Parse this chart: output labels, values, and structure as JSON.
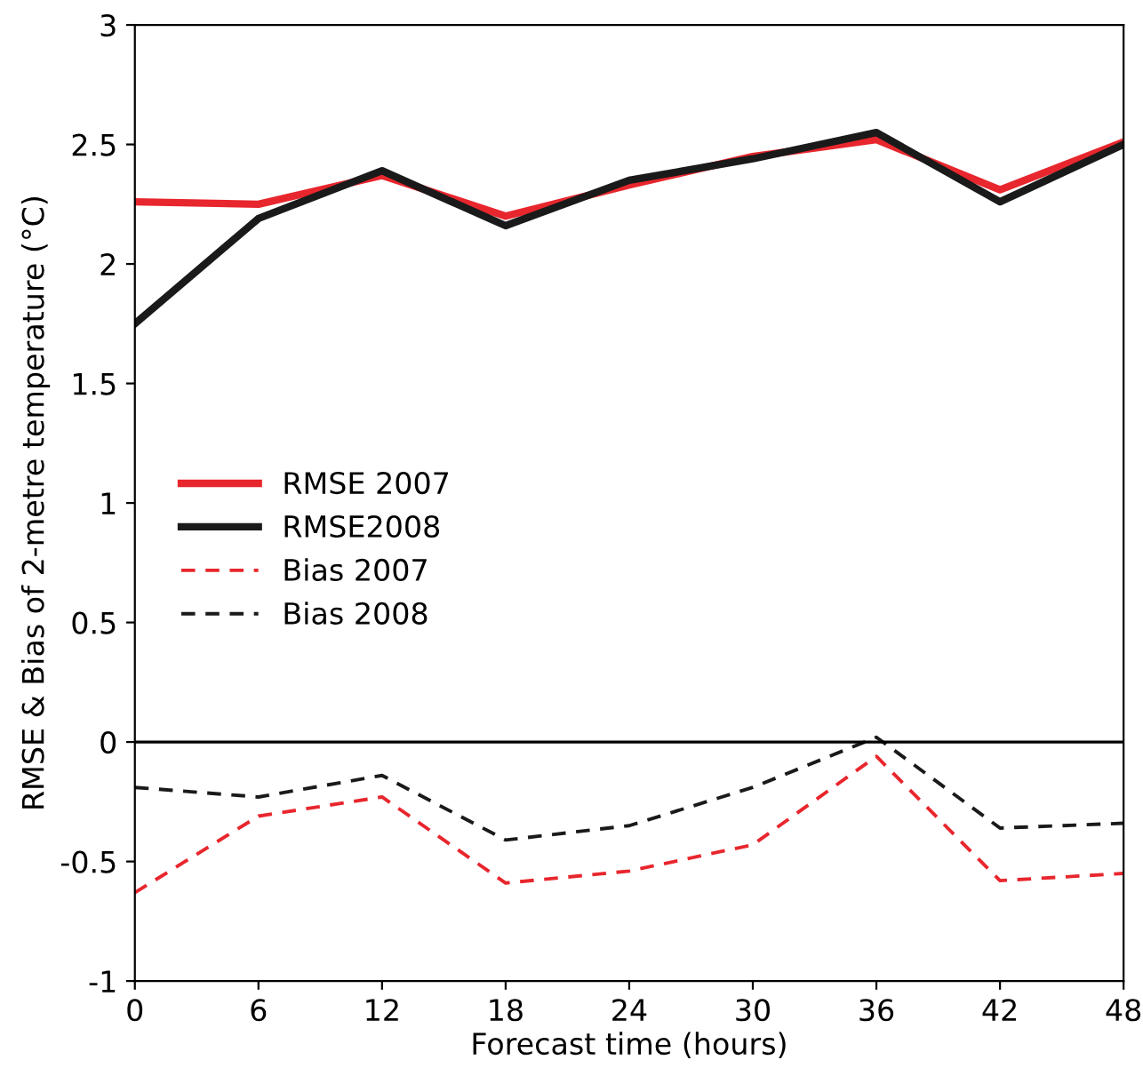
{
  "chart_data": {
    "type": "line",
    "xlabel": "Forecast time (hours)",
    "ylabel": "RMSE & Bias of 2-metre temperature (°C)",
    "x": [
      0,
      6,
      12,
      18,
      24,
      30,
      36,
      42,
      48
    ],
    "series": [
      {
        "name": "RMSE 2007",
        "color": "#e8262d",
        "line_style": "solid",
        "values": [
          2.26,
          2.25,
          2.37,
          2.2,
          2.33,
          2.45,
          2.52,
          2.31,
          2.51
        ]
      },
      {
        "name": "RMSE2008",
        "color": "#1a1a1a",
        "line_style": "solid",
        "values": [
          1.75,
          2.19,
          2.39,
          2.16,
          2.35,
          2.44,
          2.55,
          2.26,
          2.5
        ]
      },
      {
        "name": "Bias 2007",
        "color": "#e8262d",
        "line_style": "dashed",
        "values": [
          -0.63,
          -0.31,
          -0.23,
          -0.59,
          -0.54,
          -0.43,
          -0.06,
          -0.58,
          -0.55
        ]
      },
      {
        "name": "Bias 2008",
        "color": "#1a1a1a",
        "line_style": "dashed",
        "values": [
          -0.19,
          -0.23,
          -0.14,
          -0.41,
          -0.35,
          -0.19,
          0.02,
          -0.36,
          -0.34
        ]
      }
    ],
    "xlim": [
      0,
      48
    ],
    "xticks": [
      0,
      6,
      12,
      18,
      24,
      30,
      36,
      42,
      48
    ],
    "ylim": [
      -1,
      3
    ],
    "yticks": [
      -1,
      -0.5,
      0,
      0.5,
      1,
      1.5,
      2,
      2.5,
      3
    ],
    "ref_lines": [
      {
        "axis": "y",
        "value": 0,
        "color": "#000000"
      }
    ],
    "grid": false,
    "legend": "left",
    "marker": "none"
  }
}
